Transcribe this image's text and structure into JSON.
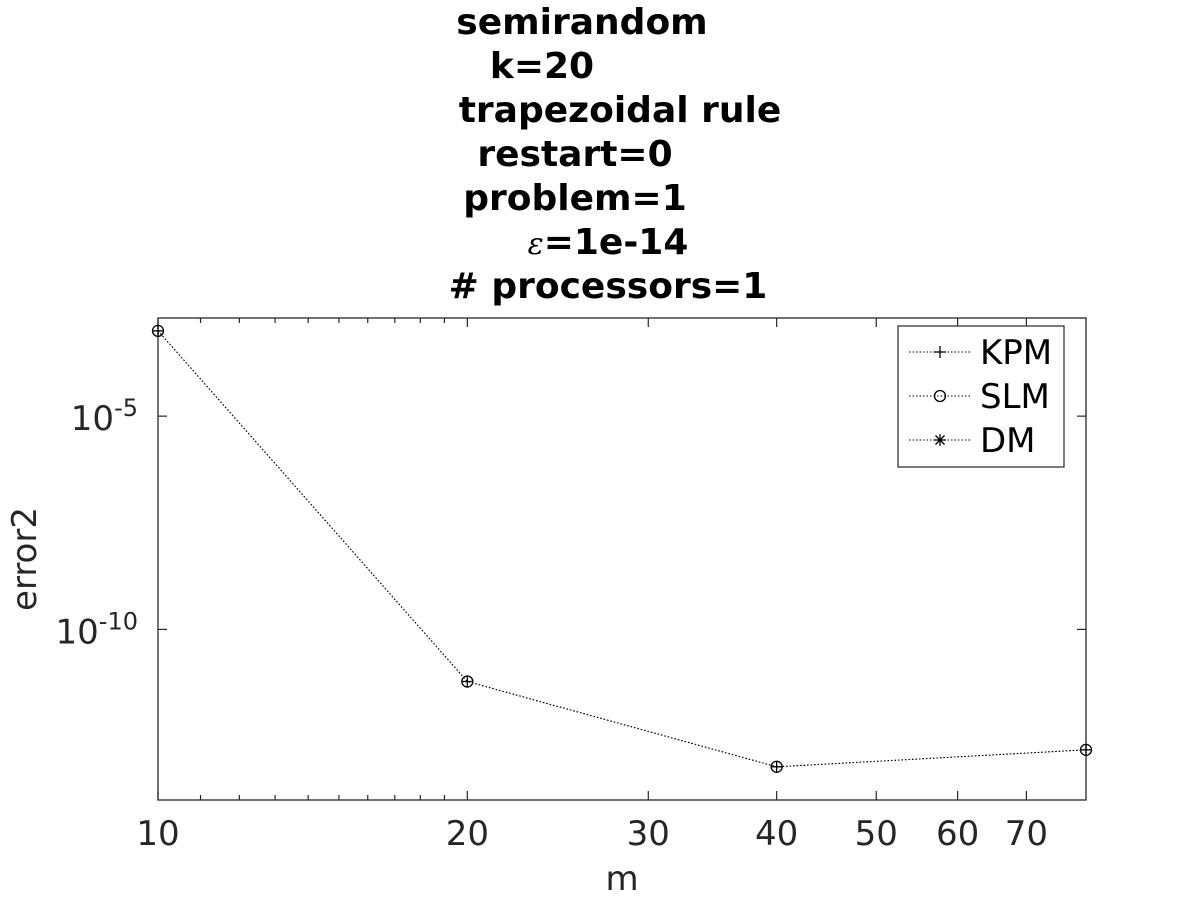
{
  "chart_data": {
    "type": "line",
    "title_lines": [
      "semirandom",
      "k=20",
      "trapezoidal rule",
      "restart=0",
      "problem=1",
      "=1e-14",
      "# processors=1"
    ],
    "epsilon_symbol": "ε",
    "xlabel": "m",
    "ylabel": "error2",
    "x_scale": "log",
    "y_scale": "log",
    "xlim": [
      10,
      80
    ],
    "ylim": [
      1e-14,
      0.002
    ],
    "x_ticks": [
      10,
      20,
      30,
      40,
      50,
      60,
      70
    ],
    "x_tick_labels": [
      "10",
      "20",
      "30",
      "40",
      "50",
      "60",
      "70"
    ],
    "y_ticks": [
      {
        "value": 1e-05,
        "base": "10",
        "exp": "-5"
      },
      {
        "value": 1e-10,
        "base": "10",
        "exp": "-10"
      }
    ],
    "grid": false,
    "legend_position": "top-right",
    "series": [
      {
        "name": "KPM",
        "marker": "plus",
        "x": [
          10,
          20,
          40,
          80
        ],
        "y": [
          0.001,
          6e-12,
          6e-14,
          1.5e-13
        ]
      },
      {
        "name": "SLM",
        "marker": "circle",
        "x": [
          10,
          20,
          40,
          80
        ],
        "y": [
          0.001,
          6e-12,
          6e-14,
          1.5e-13
        ]
      },
      {
        "name": "DM",
        "marker": "star",
        "x": [],
        "y": []
      }
    ]
  }
}
